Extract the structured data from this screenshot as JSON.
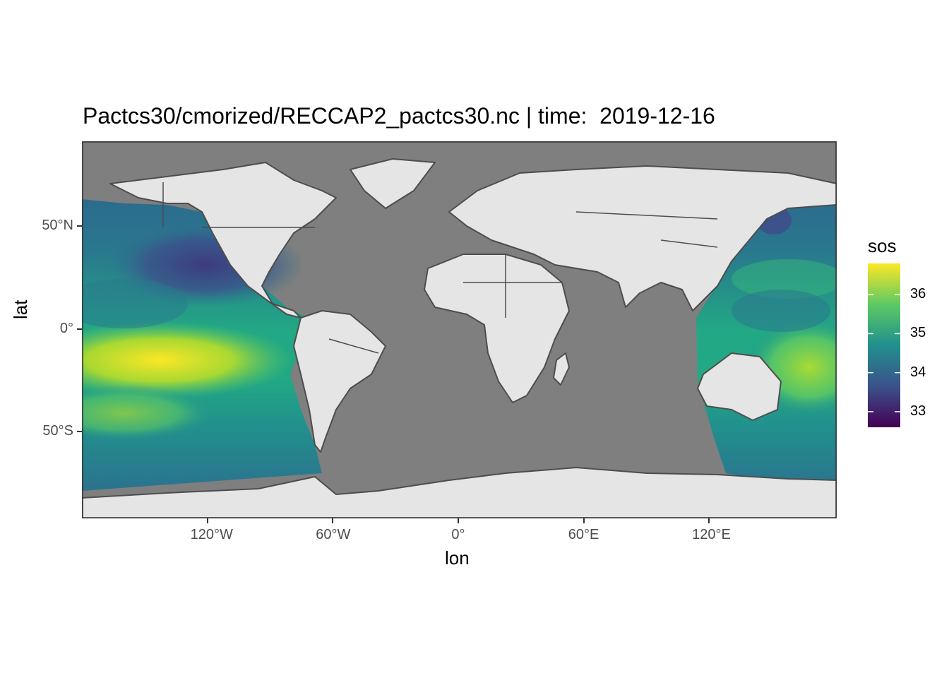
{
  "title": "Pactcs30/cmorized/RECCAP2_pactcs30.nc | time:  2019-12-16",
  "x_axis": {
    "label": "lon",
    "ticks": [
      {
        "value": -120,
        "label": "120°W"
      },
      {
        "value": -60,
        "label": "60°W"
      },
      {
        "value": 0,
        "label": "0°"
      },
      {
        "value": 60,
        "label": "60°E"
      },
      {
        "value": 120,
        "label": "120°E"
      }
    ],
    "range": [
      -180,
      180
    ]
  },
  "y_axis": {
    "label": "lat",
    "ticks": [
      {
        "value": 50,
        "label": "50°N"
      },
      {
        "value": 0,
        "label": "0°"
      },
      {
        "value": -50,
        "label": "50°S"
      }
    ],
    "range": [
      -90,
      90
    ]
  },
  "legend": {
    "title": "sos",
    "ticks": [
      {
        "value": 36,
        "label": "36"
      },
      {
        "value": 35,
        "label": "35"
      },
      {
        "value": 34,
        "label": "34"
      },
      {
        "value": 33,
        "label": "33"
      }
    ],
    "range": [
      32.6,
      36.8
    ],
    "colormap": "viridis"
  },
  "colors": {
    "panel_background": "#7f7f7f",
    "land": "#e5e5e5",
    "coastline": "#4d4d4d",
    "viridis": [
      "#440154",
      "#3b528b",
      "#21908d",
      "#5dc963",
      "#fde725"
    ]
  },
  "data_coverage": "Pacific Ocean (approx. 120°E to 70°W)"
}
